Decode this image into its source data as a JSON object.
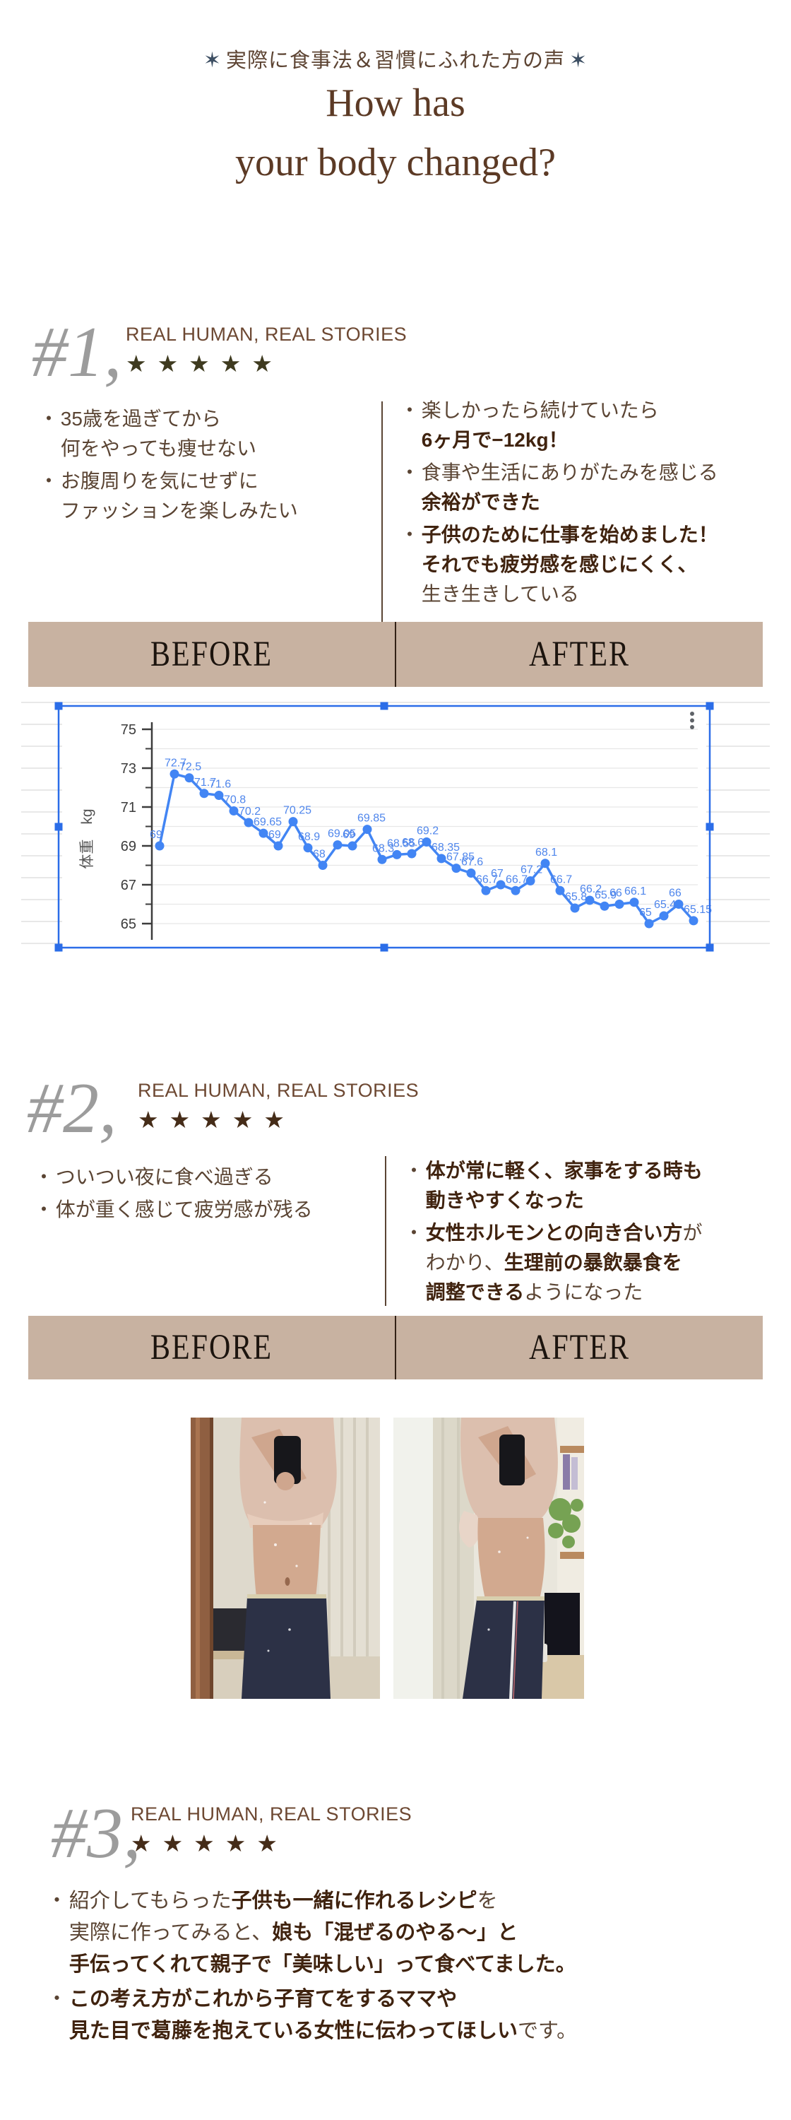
{
  "header": {
    "spark_icon": "✶",
    "tagline": "実際に食事法＆習慣にふれた方の声",
    "title_line1": "How has",
    "title_line2": "your body changed?"
  },
  "bullet_marker": "・",
  "before_after": {
    "before": "BEFORE",
    "after": "AFTER"
  },
  "testimonial1": {
    "number": "#1,",
    "eyebrow": "REAL HUMAN, REAL STORIES",
    "stars": "★★★★★",
    "left_bullets": [
      [
        {
          "t": "35歳を過ぎてから\n何をやっても痩せない"
        }
      ],
      [
        {
          "t": "お腹周りを気にせずに\nファッションを楽しみたい"
        }
      ]
    ],
    "right_bullets": [
      [
        {
          "t": "楽しかったら続けていたら\n"
        },
        {
          "t": "6ヶ月で−12kg！",
          "b": true
        }
      ],
      [
        {
          "t": "食事や生活にありがたみを感じる\n"
        },
        {
          "t": "余裕ができた",
          "b": true
        }
      ],
      [
        {
          "t": "子供のために仕事を始めました！\nそれでも疲労感を感じにくく、\n",
          "b": true
        },
        {
          "t": "生き生きしている"
        }
      ]
    ]
  },
  "testimonial2": {
    "number": "#2,",
    "eyebrow": "REAL HUMAN, REAL STORIES",
    "stars": "★★★★★",
    "left_bullets": [
      [
        {
          "t": "ついつい夜に食べ過ぎる"
        }
      ],
      [
        {
          "t": "体が重く感じて疲労感が残る"
        }
      ]
    ],
    "right_bullets": [
      [
        {
          "t": "体が常に軽く、家事をする時も\n動きやすくなった",
          "b": true
        }
      ],
      [
        {
          "t": "女性ホルモンとの向き合い方",
          "b": true
        },
        {
          "t": "が\nわかり、"
        },
        {
          "t": "生理前の暴飲暴食を\n調整できる",
          "b": true
        },
        {
          "t": "ようになった"
        }
      ]
    ]
  },
  "testimonial3": {
    "number": "#3,",
    "eyebrow": "REAL HUMAN, REAL STORIES",
    "stars": "★★★★★",
    "bullets": [
      [
        {
          "t": "紹介してもらった"
        },
        {
          "t": "子供も一緒に作れるレシピ",
          "b": true
        },
        {
          "t": "を\n実際に作ってみると、"
        },
        {
          "t": "娘も「混ぜるのやる〜」と\n手伝ってくれて親子で「美味しい」って食べてました。",
          "b": true
        }
      ],
      [
        {
          "t": "この考え方がこれから子育てをするママや\n見た目で葛藤を抱えている女性に伝わってほしい",
          "b": true
        },
        {
          "t": "です。"
        }
      ]
    ]
  },
  "chart_data": {
    "type": "line",
    "title": "",
    "ylabel": "体重　kg",
    "yticks": [
      75,
      73,
      71,
      69,
      67,
      65
    ],
    "minor_ticks": [
      74,
      72,
      70,
      68,
      66,
      64
    ],
    "ylim": [
      64,
      76
    ],
    "values": [
      69,
      72.7,
      72.5,
      71.7,
      71.6,
      70.8,
      70.2,
      69.65,
      69,
      70.25,
      68.9,
      68,
      69.05,
      69,
      69.85,
      68.3,
      68.55,
      68.6,
      69.2,
      68.35,
      67.85,
      67.6,
      66.7,
      67,
      66.7,
      67.2,
      68.1,
      66.7,
      65.8,
      66.2,
      65.9,
      66,
      66.1,
      65,
      65.4,
      66,
      65.15
    ],
    "labels": [
      "69",
      "72.7",
      "72.5",
      "71.7",
      "71.6",
      "70.8",
      "70.2",
      "69.65",
      "69",
      "70.25",
      "68.9",
      "68",
      "69.05",
      "69",
      "69.85",
      "68.3",
      "68.55",
      "68.6",
      "69.2",
      "68.35",
      "67.85",
      "67.6",
      "66.7",
      "67",
      "66.7",
      "67.2",
      "68.1",
      "66.7",
      "65.8",
      "66.2",
      "65.9",
      "66",
      "66.1",
      "65",
      "65.4",
      "66",
      "65.15"
    ],
    "line_color": "#4285f4",
    "label_color": "#4f86ec",
    "grid_color": "#e7e7e7",
    "axis_color": "#3c3c3c",
    "selection_color": "#2b6de8",
    "menu_icon": "kebab-menu",
    "grid": true,
    "legend": "none",
    "selected": true
  }
}
